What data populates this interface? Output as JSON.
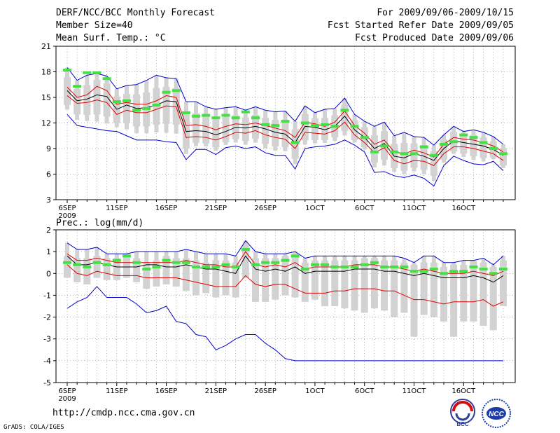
{
  "header": {
    "title": "DERF/NCC/BCC Monthly Forecast",
    "member_size": "Member Size=40",
    "variable": "Mean Surf. Temp.: °C",
    "period": "For 2009/09/06-2009/10/15",
    "start_date": "Fcst Started Refer Date 2009/09/05",
    "produced_date": "Fcst Produced Date 2009/09/06"
  },
  "footer": {
    "url": "http://cmdp.ncc.cma.gov.cn",
    "credit": "GrADS: COLA/IGES",
    "logo_bcc": "BCC",
    "logo_ncc": "NCC"
  },
  "colors": {
    "box": "#d2d2d2",
    "median": "#44e044",
    "mean": "#000000",
    "spread": "#e00000",
    "extreme": "#0000cc",
    "grid": "#000000"
  },
  "chart_data": [
    {
      "type": "box-ensemble",
      "title": "Mean Surf. Temp.: °C",
      "ylim": [
        3,
        21
      ],
      "yticks": [
        3,
        6,
        9,
        12,
        15,
        18,
        21
      ],
      "xticks": [
        {
          "day": 0,
          "label": "6SEP",
          "sub": "2009"
        },
        {
          "day": 5,
          "label": "11SEP"
        },
        {
          "day": 10,
          "label": "16SEP"
        },
        {
          "day": 15,
          "label": "21SEP"
        },
        {
          "day": 20,
          "label": "26SEP"
        },
        {
          "day": 25,
          "label": "1OCT"
        },
        {
          "day": 30,
          "label": "6OCT"
        },
        {
          "day": 35,
          "label": "11OCT"
        },
        {
          "day": 40,
          "label": "16OCT"
        }
      ],
      "series": [
        {
          "name": "ensemble mean",
          "values": [
            15.8,
            14.6,
            14.8,
            15.3,
            15.1,
            13.6,
            14.1,
            13.7,
            13.8,
            14.1,
            14.6,
            14.5,
            11.0,
            11.1,
            11.0,
            10.6,
            11.0,
            11.5,
            11.4,
            11.6,
            11.3,
            10.9,
            10.7,
            9.7,
            11.6,
            11.5,
            11.2,
            11.6,
            12.8,
            11.2,
            10.3,
            9.0,
            9.6,
            8.1,
            7.9,
            8.4,
            8.1,
            7.6,
            9.0,
            9.9,
            9.7,
            9.5,
            9.3,
            8.9,
            8.2
          ]
        },
        {
          "name": "upper spread",
          "values": [
            16.2,
            15.0,
            15.3,
            16.3,
            15.8,
            14.2,
            14.4,
            14.2,
            14.2,
            14.6,
            15.2,
            15.0,
            11.7,
            11.8,
            11.6,
            11.2,
            11.6,
            11.9,
            11.8,
            12.0,
            11.7,
            11.4,
            11.1,
            10.3,
            12.1,
            11.9,
            11.6,
            12.1,
            13.4,
            11.7,
            10.8,
            9.5,
            10.0,
            8.6,
            8.4,
            8.8,
            8.5,
            8.0,
            9.5,
            10.3,
            10.1,
            10.0,
            9.7,
            9.3,
            8.6
          ]
        },
        {
          "name": "lower spread",
          "values": [
            15.2,
            14.3,
            14.4,
            14.7,
            14.4,
            13.0,
            13.5,
            13.2,
            13.2,
            13.6,
            14.0,
            13.9,
            10.3,
            10.4,
            10.3,
            10.0,
            10.4,
            10.9,
            10.8,
            11.1,
            10.6,
            10.3,
            10.1,
            9.0,
            10.9,
            10.8,
            10.7,
            11.1,
            12.1,
            10.6,
            9.7,
            8.5,
            9.1,
            7.6,
            7.2,
            7.6,
            7.5,
            7.0,
            8.4,
            9.2,
            9.2,
            9.0,
            8.7,
            8.4,
            7.6
          ]
        },
        {
          "name": "ensemble max",
          "values": [
            18.5,
            17.0,
            17.6,
            17.8,
            17.5,
            16.0,
            16.4,
            16.5,
            17.0,
            17.6,
            17.3,
            17.2,
            14.5,
            14.5,
            13.9,
            13.6,
            13.8,
            13.9,
            13.5,
            13.9,
            13.5,
            13.3,
            13.4,
            12.2,
            14.0,
            13.2,
            13.6,
            13.7,
            14.9,
            13.0,
            12.2,
            11.6,
            12.1,
            10.5,
            10.9,
            10.4,
            10.3,
            9.4,
            10.6,
            11.6,
            11.0,
            11.2,
            10.9,
            10.4,
            9.5
          ]
        },
        {
          "name": "ensemble min",
          "values": [
            13.0,
            11.7,
            11.5,
            11.3,
            11.1,
            11.0,
            10.5,
            10.0,
            10.0,
            10.0,
            9.8,
            9.7,
            7.7,
            8.9,
            8.9,
            8.3,
            9.1,
            9.3,
            9.0,
            9.2,
            8.5,
            8.2,
            8.2,
            6.6,
            9.0,
            9.2,
            9.3,
            9.5,
            10.0,
            9.4,
            8.6,
            6.2,
            6.3,
            5.8,
            5.6,
            5.9,
            5.5,
            4.6,
            7.0,
            8.1,
            7.6,
            7.2,
            7.1,
            7.5,
            6.4
          ]
        },
        {
          "name": "median",
          "values": [
            18.2,
            16.3,
            17.9,
            17.9,
            17.2,
            14.5,
            14.6,
            13.5,
            13.7,
            14.1,
            15.6,
            15.8,
            13.2,
            12.8,
            12.9,
            12.6,
            12.9,
            12.6,
            13.3,
            12.6,
            11.8,
            11.7,
            12.2,
            9.7,
            12.0,
            11.7,
            11.8,
            11.6,
            13.5,
            11.6,
            10.3,
            8.6,
            9.3,
            8.6,
            8.4,
            8.4,
            9.2,
            8.2,
            9.5,
            9.8,
            10.6,
            10.3,
            9.7,
            9.0,
            8.4
          ]
        }
      ]
    },
    {
      "type": "box-ensemble",
      "title": "Prec.: log(mm/d)",
      "ylim": [
        -5,
        2
      ],
      "yticks": [
        -5,
        -4,
        -3,
        -2,
        -1,
        0,
        1,
        2
      ],
      "xticks": [
        {
          "day": 0,
          "label": "6SEP",
          "sub": "2009"
        },
        {
          "day": 5,
          "label": "11SEP"
        },
        {
          "day": 10,
          "label": "16SEP"
        },
        {
          "day": 15,
          "label": "21SEP"
        },
        {
          "day": 20,
          "label": "26SEP"
        },
        {
          "day": 25,
          "label": "1OCT"
        },
        {
          "day": 30,
          "label": "6OCT"
        },
        {
          "day": 35,
          "label": "11OCT"
        },
        {
          "day": 40,
          "label": "16OCT"
        }
      ],
      "series": [
        {
          "name": "ensemble mean",
          "values": [
            0.8,
            0.4,
            0.4,
            0.5,
            0.4,
            0.3,
            0.3,
            0.3,
            0.4,
            0.4,
            0.3,
            0.3,
            0.4,
            0.3,
            0.2,
            0.2,
            0.1,
            0.0,
            0.8,
            0.2,
            0.1,
            0.2,
            0.1,
            0.3,
            0.0,
            0.1,
            0.1,
            0.1,
            0.1,
            0.2,
            0.2,
            0.2,
            0.1,
            0.1,
            0.0,
            -0.1,
            0.0,
            -0.1,
            -0.2,
            -0.2,
            -0.2,
            -0.1,
            -0.2,
            -0.4,
            -0.1
          ]
        },
        {
          "name": "upper spread",
          "values": [
            0.9,
            0.6,
            0.6,
            0.7,
            0.6,
            0.5,
            0.5,
            0.5,
            0.5,
            0.5,
            0.5,
            0.5,
            0.6,
            0.5,
            0.4,
            0.4,
            0.3,
            0.3,
            1.0,
            0.4,
            0.3,
            0.4,
            0.3,
            0.5,
            0.2,
            0.3,
            0.3,
            0.3,
            0.3,
            0.4,
            0.4,
            0.4,
            0.3,
            0.3,
            0.2,
            0.1,
            0.2,
            0.1,
            0.0,
            0.0,
            0.0,
            0.1,
            0.0,
            -0.1,
            0.1
          ]
        },
        {
          "name": "lower spread",
          "values": [
            0.4,
            0.0,
            -0.1,
            0.1,
            0.0,
            -0.1,
            -0.1,
            -0.1,
            -0.2,
            -0.2,
            -0.2,
            -0.2,
            -0.3,
            -0.4,
            -0.5,
            -0.6,
            -0.6,
            -0.6,
            -0.1,
            -0.5,
            -0.6,
            -0.5,
            -0.5,
            -0.7,
            -0.9,
            -0.9,
            -0.9,
            -0.8,
            -0.8,
            -0.7,
            -0.7,
            -0.7,
            -0.8,
            -0.8,
            -1.0,
            -1.2,
            -1.2,
            -1.3,
            -1.4,
            -1.3,
            -1.3,
            -1.3,
            -1.2,
            -1.5,
            -1.3
          ]
        },
        {
          "name": "ensemble max",
          "values": [
            1.4,
            1.1,
            1.1,
            1.2,
            0.9,
            0.9,
            0.9,
            1.0,
            1.0,
            1.0,
            1.0,
            1.0,
            1.1,
            1.0,
            0.9,
            0.9,
            0.9,
            0.8,
            1.5,
            1.0,
            0.9,
            0.9,
            0.9,
            1.0,
            0.7,
            0.8,
            0.8,
            0.8,
            0.8,
            0.8,
            0.8,
            0.8,
            0.8,
            0.8,
            0.7,
            0.5,
            0.8,
            0.8,
            0.5,
            0.5,
            0.6,
            0.6,
            0.7,
            0.4,
            0.8
          ]
        },
        {
          "name": "ensemble min",
          "values": [
            -1.6,
            -1.3,
            -1.1,
            -0.6,
            -1.1,
            -1.1,
            -1.1,
            -1.4,
            -1.8,
            -1.7,
            -1.5,
            -2.2,
            -2.3,
            -2.8,
            -2.9,
            -3.5,
            -3.3,
            -3.0,
            -2.8,
            -2.8,
            -3.2,
            -3.5,
            -3.9,
            -4.0,
            -4.0,
            -4.0,
            -4.0,
            -4.0,
            -4.0,
            -4.0,
            -4.0,
            -4.0,
            -4.0,
            -4.0,
            -4.0,
            -4.0,
            -4.0,
            -4.0,
            -4.0,
            -4.0,
            -4.0,
            -4.0,
            -4.0,
            -4.0,
            -4.0
          ]
        },
        {
          "name": "median",
          "values": [
            0.5,
            0.4,
            0.3,
            0.5,
            0.4,
            0.6,
            0.8,
            0.5,
            0.2,
            0.3,
            0.6,
            0.5,
            0.5,
            0.3,
            0.3,
            0.3,
            0.4,
            0.3,
            1.1,
            0.4,
            0.5,
            0.5,
            0.6,
            0.8,
            0.2,
            0.4,
            0.4,
            0.3,
            0.3,
            0.3,
            0.4,
            0.5,
            0.3,
            0.3,
            0.3,
            0.1,
            0.1,
            0.2,
            0.0,
            0.1,
            0.1,
            0.3,
            0.2,
            0.0,
            0.2
          ]
        },
        {
          "name": "box upper",
          "values": [
            0.8,
            0.7,
            0.7,
            0.8,
            0.7,
            0.7,
            0.9,
            0.7,
            0.5,
            0.6,
            0.8,
            0.7,
            0.7,
            0.6,
            0.5,
            0.6,
            0.6,
            0.5,
            1.3,
            0.7,
            0.7,
            0.7,
            0.8,
            0.9,
            0.5,
            0.6,
            0.6,
            0.6,
            0.6,
            0.6,
            0.7,
            0.7,
            0.6,
            0.6,
            0.5,
            0.4,
            0.5,
            0.5,
            0.3,
            0.4,
            0.4,
            0.6,
            0.5,
            0.3,
            0.6
          ]
        },
        {
          "name": "box lower",
          "values": [
            -0.2,
            -0.4,
            -0.5,
            -0.2,
            -0.3,
            -0.3,
            -0.2,
            -0.4,
            -0.7,
            -0.6,
            -0.5,
            -0.6,
            -0.8,
            -1.0,
            -0.9,
            -1.1,
            -1.0,
            -1.1,
            -0.2,
            -1.3,
            -1.3,
            -1.2,
            -1.0,
            -1.1,
            -1.3,
            -1.2,
            -1.5,
            -1.5,
            -1.6,
            -1.7,
            -1.8,
            -1.6,
            -1.7,
            -2.0,
            -1.8,
            -2.9,
            -1.9,
            -2.0,
            -2.2,
            -2.9,
            -2.2,
            -2.2,
            -2.4,
            -2.6,
            -1.5
          ]
        }
      ]
    }
  ]
}
